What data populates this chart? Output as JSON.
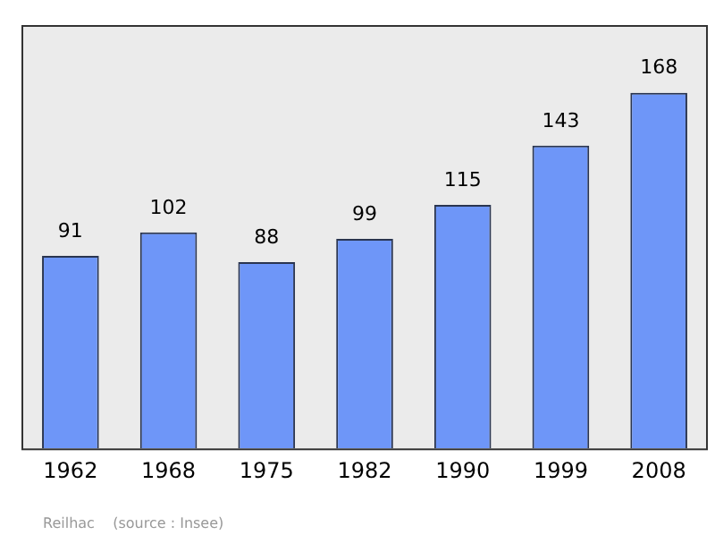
{
  "chart_data": {
    "type": "bar",
    "categories": [
      "1962",
      "1968",
      "1975",
      "1982",
      "1990",
      "1999",
      "2008"
    ],
    "values": [
      91,
      102,
      88,
      99,
      115,
      143,
      168
    ],
    "color": "#6e96f8",
    "relative": false,
    "data_labels": true,
    "grid": false,
    "legend": false,
    "annotations": [
      "Reilhac    (source : Insee)"
    ]
  }
}
